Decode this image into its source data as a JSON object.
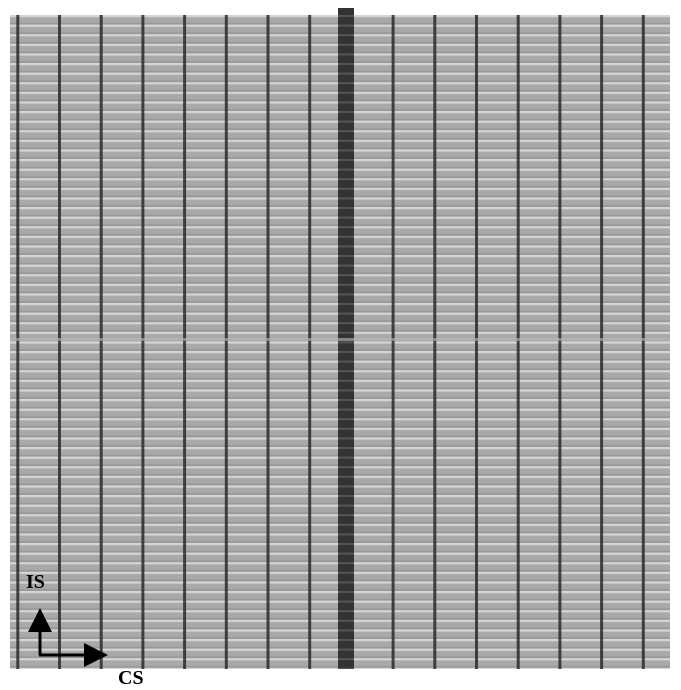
{
  "labels": {
    "vertical_axis": "IS",
    "horizontal_axis": "CS"
  }
}
